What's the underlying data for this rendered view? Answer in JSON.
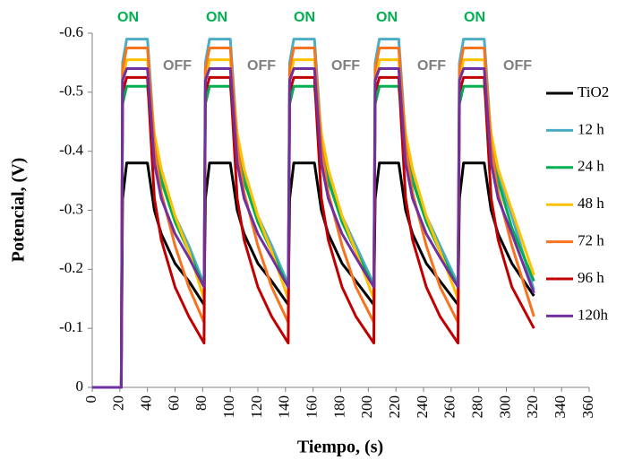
{
  "chart_data": {
    "type": "line",
    "xlabel": "Tiempo, (s)",
    "ylabel": "Potencial, (V)",
    "x": [
      0,
      20,
      21,
      22,
      25,
      40,
      45,
      50,
      60,
      70,
      81,
      82,
      85,
      100,
      105,
      110,
      120,
      130,
      142,
      143,
      146,
      161,
      166,
      171,
      181,
      191,
      204,
      205,
      208,
      222,
      227,
      232,
      242,
      252,
      265,
      266,
      269,
      284,
      289,
      294,
      304,
      320
    ],
    "series": [
      {
        "name": "TiO2",
        "color": "#000000",
        "values": [
          0,
          0,
          0,
          -0.32,
          -0.38,
          -0.38,
          -0.3,
          -0.26,
          -0.21,
          -0.18,
          -0.14,
          -0.32,
          -0.38,
          -0.38,
          -0.3,
          -0.26,
          -0.21,
          -0.18,
          -0.14,
          -0.32,
          -0.38,
          -0.38,
          -0.3,
          -0.26,
          -0.21,
          -0.18,
          -0.14,
          -0.32,
          -0.38,
          -0.38,
          -0.3,
          -0.26,
          -0.21,
          -0.18,
          -0.14,
          -0.32,
          -0.38,
          -0.38,
          -0.3,
          -0.26,
          -0.21,
          -0.155
        ]
      },
      {
        "name": "12 h",
        "color": "#4bacc6",
        "values": [
          0,
          0,
          0,
          -0.55,
          -0.59,
          -0.59,
          -0.42,
          -0.36,
          -0.29,
          -0.24,
          -0.175,
          -0.55,
          -0.59,
          -0.59,
          -0.42,
          -0.36,
          -0.29,
          -0.24,
          -0.175,
          -0.55,
          -0.59,
          -0.59,
          -0.42,
          -0.36,
          -0.29,
          -0.24,
          -0.175,
          -0.55,
          -0.59,
          -0.59,
          -0.42,
          -0.36,
          -0.29,
          -0.24,
          -0.175,
          -0.55,
          -0.59,
          -0.59,
          -0.42,
          -0.36,
          -0.29,
          -0.165
        ]
      },
      {
        "name": "24 h",
        "color": "#00b050",
        "values": [
          0,
          0,
          0,
          -0.48,
          -0.51,
          -0.51,
          -0.4,
          -0.35,
          -0.28,
          -0.23,
          -0.17,
          -0.48,
          -0.51,
          -0.51,
          -0.4,
          -0.35,
          -0.28,
          -0.23,
          -0.17,
          -0.48,
          -0.51,
          -0.51,
          -0.4,
          -0.35,
          -0.28,
          -0.23,
          -0.17,
          -0.48,
          -0.51,
          -0.51,
          -0.4,
          -0.35,
          -0.28,
          -0.23,
          -0.17,
          -0.48,
          -0.51,
          -0.51,
          -0.4,
          -0.35,
          -0.27,
          -0.18
        ]
      },
      {
        "name": "48 h",
        "color": "#ffc000",
        "values": [
          0,
          0,
          0,
          -0.52,
          -0.555,
          -0.555,
          -0.43,
          -0.37,
          -0.29,
          -0.23,
          -0.15,
          -0.52,
          -0.555,
          -0.555,
          -0.43,
          -0.37,
          -0.29,
          -0.23,
          -0.15,
          -0.52,
          -0.555,
          -0.555,
          -0.43,
          -0.37,
          -0.29,
          -0.23,
          -0.15,
          -0.52,
          -0.555,
          -0.555,
          -0.43,
          -0.37,
          -0.29,
          -0.23,
          -0.15,
          -0.52,
          -0.555,
          -0.555,
          -0.43,
          -0.37,
          -0.3,
          -0.19
        ]
      },
      {
        "name": "72 h",
        "color": "#f7731e",
        "values": [
          0,
          0,
          0,
          -0.54,
          -0.575,
          -0.575,
          -0.41,
          -0.33,
          -0.24,
          -0.17,
          -0.11,
          -0.54,
          -0.575,
          -0.575,
          -0.41,
          -0.33,
          -0.24,
          -0.17,
          -0.11,
          -0.54,
          -0.575,
          -0.575,
          -0.41,
          -0.33,
          -0.24,
          -0.17,
          -0.11,
          -0.54,
          -0.575,
          -0.575,
          -0.41,
          -0.33,
          -0.24,
          -0.17,
          -0.11,
          -0.54,
          -0.575,
          -0.575,
          -0.41,
          -0.33,
          -0.24,
          -0.12
        ]
      },
      {
        "name": "96 h",
        "color": "#c00000",
        "values": [
          0,
          0,
          0,
          -0.5,
          -0.525,
          -0.525,
          -0.32,
          -0.25,
          -0.17,
          -0.12,
          -0.075,
          -0.5,
          -0.525,
          -0.525,
          -0.32,
          -0.25,
          -0.17,
          -0.12,
          -0.075,
          -0.5,
          -0.525,
          -0.525,
          -0.32,
          -0.25,
          -0.17,
          -0.12,
          -0.075,
          -0.5,
          -0.525,
          -0.525,
          -0.32,
          -0.25,
          -0.17,
          -0.12,
          -0.075,
          -0.5,
          -0.525,
          -0.525,
          -0.32,
          -0.25,
          -0.17,
          -0.1
        ]
      },
      {
        "name": "120h",
        "color": "#7030a0",
        "values": [
          0,
          0,
          0,
          -0.52,
          -0.54,
          -0.54,
          -0.38,
          -0.32,
          -0.26,
          -0.22,
          -0.17,
          -0.52,
          -0.54,
          -0.54,
          -0.38,
          -0.32,
          -0.26,
          -0.22,
          -0.17,
          -0.52,
          -0.54,
          -0.54,
          -0.38,
          -0.32,
          -0.26,
          -0.22,
          -0.17,
          -0.52,
          -0.54,
          -0.54,
          -0.38,
          -0.32,
          -0.26,
          -0.22,
          -0.17,
          -0.52,
          -0.54,
          -0.54,
          -0.38,
          -0.32,
          -0.26,
          -0.16
        ]
      }
    ],
    "xlim": [
      0,
      360
    ],
    "xticks": [
      0,
      20,
      40,
      60,
      80,
      100,
      120,
      140,
      160,
      180,
      200,
      220,
      240,
      260,
      280,
      300,
      320,
      340,
      360
    ],
    "ylim": [
      0,
      -0.6
    ],
    "yticks": [
      0,
      -0.1,
      -0.2,
      -0.3,
      -0.4,
      -0.5,
      -0.6
    ],
    "on_labels": [
      "ON",
      "ON",
      "ON",
      "ON",
      "ON"
    ],
    "on_color": "#00b050",
    "off_labels": [
      "OFF",
      "OFF",
      "OFF",
      "OFF",
      "OFF"
    ],
    "off_color": "#808080",
    "legend": "right",
    "grid": false
  }
}
